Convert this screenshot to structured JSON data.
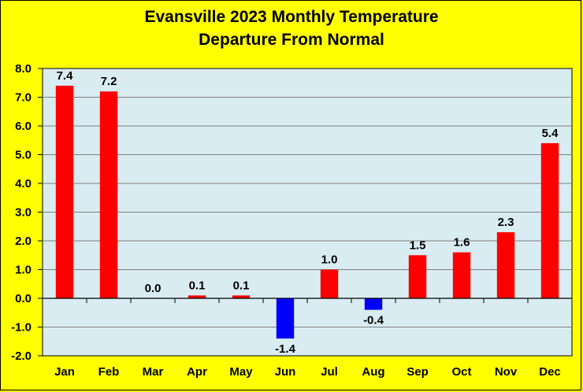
{
  "title_line1": "Evansville 2023 Monthly Temperature",
  "title_line2": "Departure From Normal",
  "colors": {
    "background": "#ffff00",
    "plot_area": "#d9ecf2",
    "positive": "#ff0000",
    "negative": "#0000ff",
    "gridline": "#808080"
  },
  "chart_data": {
    "type": "bar",
    "title": "Evansville 2023 Monthly Temperature Departure From Normal",
    "categories": [
      "Jan",
      "Feb",
      "Mar",
      "Apr",
      "May",
      "Jun",
      "Jul",
      "Aug",
      "Sep",
      "Oct",
      "Nov",
      "Dec"
    ],
    "values": [
      7.4,
      7.2,
      0.0,
      0.1,
      0.1,
      -1.4,
      1.0,
      -0.4,
      1.5,
      1.6,
      2.3,
      5.4
    ],
    "data_labels": [
      "7.4",
      "7.2",
      "0.0",
      "0.1",
      "0.1",
      "-1.4",
      "1.0",
      "-0.4",
      "1.5",
      "1.6",
      "2.3",
      "5.4"
    ],
    "ylim": [
      -2.0,
      8.0
    ],
    "yticks": [
      "-2.0",
      "-1.0",
      "0.0",
      "1.0",
      "2.0",
      "3.0",
      "4.0",
      "5.0",
      "6.0",
      "7.0",
      "8.0"
    ],
    "grid": true,
    "legend": "none"
  }
}
